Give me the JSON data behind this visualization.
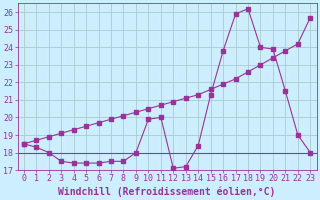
{
  "xlabel": "Windchill (Refroidissement éolien,°C)",
  "bg_color": "#cceeff",
  "grid_color": "#aacccc",
  "line_color": "#993399",
  "x_hours": [
    0,
    1,
    2,
    3,
    4,
    5,
    6,
    7,
    8,
    9,
    10,
    11,
    12,
    13,
    14,
    15,
    16,
    17,
    18,
    19,
    20,
    21,
    22,
    23
  ],
  "temp_line": [
    18.5,
    18.3,
    18.0,
    17.5,
    17.4,
    17.4,
    17.4,
    17.5,
    17.5,
    18.0,
    19.9,
    20.0,
    17.1,
    17.2,
    18.4,
    21.3,
    23.8,
    25.9,
    26.2,
    24.0,
    23.9,
    21.5,
    19.0,
    18.0
  ],
  "diag_line": [
    18.5,
    18.7,
    18.9,
    19.1,
    19.3,
    19.5,
    19.7,
    19.9,
    20.1,
    20.3,
    20.5,
    20.7,
    20.9,
    21.1,
    21.3,
    21.6,
    21.9,
    22.2,
    22.6,
    23.0,
    23.4,
    23.8,
    24.2,
    25.7
  ],
  "hline_y": 18.0,
  "ylim": [
    17.0,
    26.5
  ],
  "yticks": [
    17,
    18,
    19,
    20,
    21,
    22,
    23,
    24,
    25,
    26
  ],
  "fontsize_tick": 6,
  "fontsize_label": 7
}
